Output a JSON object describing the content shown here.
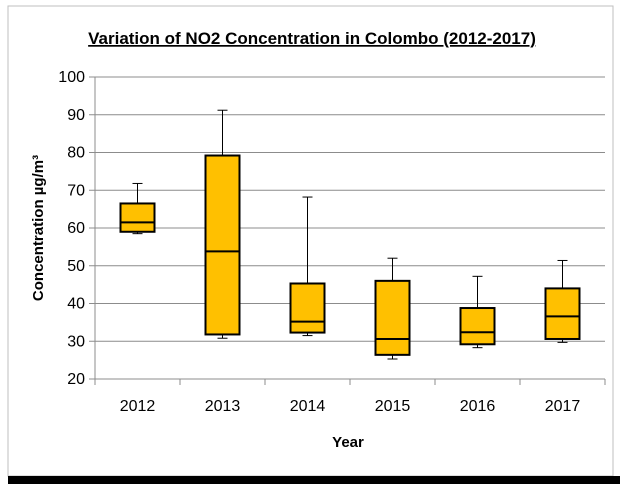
{
  "chart_data": {
    "type": "box",
    "title": "Variation of NO2 Concentration in Colombo (2012-2017)",
    "xlabel": "Year",
    "ylabel": "Concentration  µg/m³",
    "ylim": [
      20,
      100
    ],
    "yticks": [
      20,
      30,
      40,
      50,
      60,
      70,
      80,
      90,
      100
    ],
    "grid": true,
    "categories": [
      "2012",
      "2013",
      "2014",
      "2015",
      "2016",
      "2017"
    ],
    "boxes": [
      {
        "min": 58.5,
        "q1": 59,
        "median": 61.5,
        "q3": 66.5,
        "max": 71.8
      },
      {
        "min": 30.8,
        "q1": 31.8,
        "median": 53.8,
        "q3": 79.2,
        "max": 91.2
      },
      {
        "min": 31.5,
        "q1": 32.3,
        "median": 35.2,
        "q3": 45.3,
        "max": 68.2
      },
      {
        "min": 25.3,
        "q1": 26.4,
        "median": 30.6,
        "q3": 46.0,
        "max": 52.0
      },
      {
        "min": 28.3,
        "q1": 29.2,
        "median": 32.4,
        "q3": 38.8,
        "max": 47.2
      },
      {
        "min": 29.7,
        "q1": 30.6,
        "median": 36.6,
        "q3": 44.0,
        "max": 51.4
      }
    ],
    "colors": {
      "box_fill": "#ffc000",
      "box_stroke": "#000000",
      "grid": "#8c8c8c",
      "axis": "#8c8c8c"
    }
  }
}
